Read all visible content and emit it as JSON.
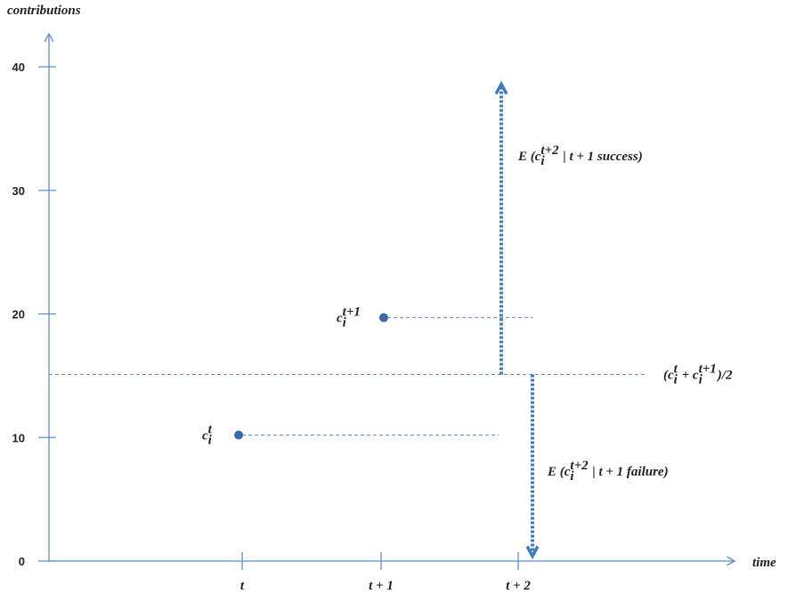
{
  "y_axis": {
    "label": "contributions",
    "ylim": [
      0,
      40
    ],
    "yticks": [
      0,
      10,
      20,
      30,
      40
    ]
  },
  "x_axis": {
    "label": "time",
    "categories": [
      "t",
      "t + 1",
      "t + 2"
    ]
  },
  "points": [
    {
      "value": 10.2,
      "label": [
        {
          "text": "c",
          "sub": "i",
          "sup": "t"
        }
      ]
    },
    {
      "value": 19.7,
      "label": [
        {
          "text": "c",
          "sub": "i",
          "sup": "t+1"
        }
      ]
    }
  ],
  "mean": {
    "value": 15.1,
    "label": [
      {
        "text": "("
      },
      {
        "text": "c",
        "sub": "i",
        "sup": "t"
      },
      {
        "text": " + "
      },
      {
        "text": "c",
        "sub": "i",
        "sup": "t+1"
      },
      {
        "text": ")/2"
      }
    ]
  },
  "success": {
    "value": 38.6,
    "label": [
      {
        "text": "E ("
      },
      {
        "text": "c",
        "sub": "i",
        "sup": "t+2"
      },
      {
        "text": " | t + 1 success)"
      }
    ]
  },
  "failure": {
    "value": 0.4,
    "label": [
      {
        "text": "E ("
      },
      {
        "text": "c",
        "sub": "i",
        "sup": "t+2"
      },
      {
        "text": " | t + 1 failure)"
      }
    ]
  }
}
